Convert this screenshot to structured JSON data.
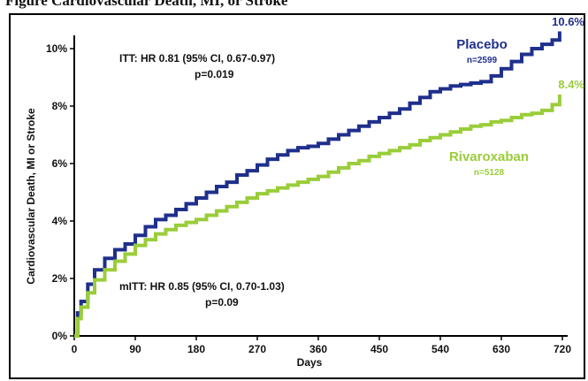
{
  "header": {
    "text": "Figure   Cardiovascular Death, MI, or Stroke"
  },
  "chart_data": {
    "type": "line",
    "xlabel": "Days",
    "ylabel": "Cardiovascular Death, MI or Stroke",
    "xlim": [
      0,
      720
    ],
    "ylim": [
      0,
      11
    ],
    "x_ticks": [
      "0",
      "90",
      "180",
      "270",
      "360",
      "450",
      "540",
      "630",
      "720"
    ],
    "y_ticks": [
      "0%",
      "2%",
      "4%",
      "6%",
      "8%",
      "10%"
    ],
    "grid": false,
    "series": [
      {
        "name": "Placebo",
        "n_label": "n=2599",
        "end_label": "10.6%",
        "color": "#1f2f8c",
        "points": [
          [
            0,
            0
          ],
          [
            5,
            0.8
          ],
          [
            10,
            1.2
          ],
          [
            20,
            1.8
          ],
          [
            30,
            2.3
          ],
          [
            45,
            2.7
          ],
          [
            60,
            3.0
          ],
          [
            75,
            3.2
          ],
          [
            90,
            3.5
          ],
          [
            105,
            3.8
          ],
          [
            120,
            4.05
          ],
          [
            135,
            4.2
          ],
          [
            150,
            4.4
          ],
          [
            165,
            4.6
          ],
          [
            180,
            4.8
          ],
          [
            195,
            5.0
          ],
          [
            210,
            5.2
          ],
          [
            225,
            5.35
          ],
          [
            240,
            5.6
          ],
          [
            255,
            5.75
          ],
          [
            270,
            5.95
          ],
          [
            285,
            6.15
          ],
          [
            300,
            6.3
          ],
          [
            315,
            6.45
          ],
          [
            330,
            6.55
          ],
          [
            345,
            6.6
          ],
          [
            360,
            6.7
          ],
          [
            375,
            6.85
          ],
          [
            390,
            7.0
          ],
          [
            405,
            7.15
          ],
          [
            420,
            7.3
          ],
          [
            435,
            7.45
          ],
          [
            450,
            7.6
          ],
          [
            465,
            7.75
          ],
          [
            480,
            7.9
          ],
          [
            495,
            8.1
          ],
          [
            510,
            8.3
          ],
          [
            525,
            8.5
          ],
          [
            540,
            8.6
          ],
          [
            555,
            8.7
          ],
          [
            570,
            8.75
          ],
          [
            585,
            8.8
          ],
          [
            600,
            8.85
          ],
          [
            615,
            9.05
          ],
          [
            630,
            9.3
          ],
          [
            645,
            9.55
          ],
          [
            660,
            9.8
          ],
          [
            675,
            10.0
          ],
          [
            690,
            10.15
          ],
          [
            705,
            10.3
          ],
          [
            716,
            10.6
          ]
        ]
      },
      {
        "name": "Rivaroxaban",
        "n_label": "n=5128",
        "end_label": "8.4%",
        "color": "#9acd3a",
        "points": [
          [
            0,
            0
          ],
          [
            5,
            0.6
          ],
          [
            10,
            1.0
          ],
          [
            20,
            1.5
          ],
          [
            30,
            1.95
          ],
          [
            45,
            2.3
          ],
          [
            60,
            2.6
          ],
          [
            75,
            2.85
          ],
          [
            90,
            3.15
          ],
          [
            105,
            3.35
          ],
          [
            120,
            3.55
          ],
          [
            135,
            3.7
          ],
          [
            150,
            3.85
          ],
          [
            165,
            3.95
          ],
          [
            180,
            4.05
          ],
          [
            195,
            4.2
          ],
          [
            210,
            4.35
          ],
          [
            225,
            4.5
          ],
          [
            240,
            4.65
          ],
          [
            255,
            4.8
          ],
          [
            270,
            4.95
          ],
          [
            285,
            5.05
          ],
          [
            300,
            5.15
          ],
          [
            315,
            5.25
          ],
          [
            330,
            5.35
          ],
          [
            345,
            5.45
          ],
          [
            360,
            5.55
          ],
          [
            375,
            5.7
          ],
          [
            390,
            5.85
          ],
          [
            405,
            6.0
          ],
          [
            420,
            6.1
          ],
          [
            435,
            6.25
          ],
          [
            450,
            6.35
          ],
          [
            465,
            6.45
          ],
          [
            480,
            6.55
          ],
          [
            495,
            6.65
          ],
          [
            510,
            6.8
          ],
          [
            525,
            6.9
          ],
          [
            540,
            7.0
          ],
          [
            555,
            7.1
          ],
          [
            570,
            7.2
          ],
          [
            585,
            7.3
          ],
          [
            600,
            7.35
          ],
          [
            615,
            7.45
          ],
          [
            630,
            7.5
          ],
          [
            645,
            7.6
          ],
          [
            660,
            7.7
          ],
          [
            675,
            7.75
          ],
          [
            690,
            7.85
          ],
          [
            705,
            8.05
          ],
          [
            716,
            8.4
          ]
        ]
      }
    ],
    "annotations": {
      "itt_line1": "ITT: HR 0.81 (95% CI, 0.67-0.97)",
      "itt_line2": "p=0.019",
      "mitt_line1": "mITT: HR 0.85 (95% CI, 0.70-1.03)",
      "mitt_line2": "p=0.09"
    }
  }
}
